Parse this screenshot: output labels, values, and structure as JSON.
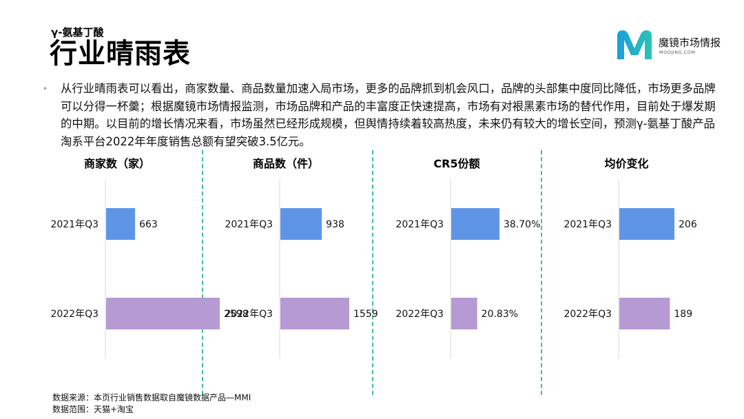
{
  "header": {
    "subtitle": "γ-氨基丁酸",
    "title": "行业晴雨表"
  },
  "logo": {
    "name_cn": "魔镜市场情报",
    "name_en": "MOOJING.COM",
    "colors": [
      "#1a9fd8",
      "#2bc3b6"
    ]
  },
  "summary": "从行业晴雨表可以看出，商家数量、商品数量加速入局市场，更多的品牌抓到机会风口，品牌的头部集中度同比降低，市场更多品牌可以分得一杯羹；根据魔镜市场情报监测，市场品牌和产品的丰富度正快速提高，市场有对裉黑素市场的替代作用，目前处于爆发期的中期。以目前的增长情况来看，市场虽然已经形成规模，但舆情持续着较高热度，未来仍有较大的增长空间，预测γ-氨基丁酸产品淘系平台2022年年度销售总额有望突破3.5亿元。",
  "colors": {
    "q3_2021": "#5f95e6",
    "q3_2022": "#b69ad3",
    "divider": "#3ebf9a"
  },
  "chart_data": [
    {
      "type": "bar",
      "orientation": "horizontal",
      "title": "商家数（家）",
      "categories": [
        "2021年Q3",
        "2022年Q3"
      ],
      "values": [
        663,
        2598
      ],
      "labels": [
        "663",
        "2598"
      ]
    },
    {
      "type": "bar",
      "orientation": "horizontal",
      "title": "商品数（件）",
      "categories": [
        "2021年Q3",
        "2022年Q3"
      ],
      "values": [
        938,
        1559
      ],
      "labels": [
        "938",
        "1559"
      ]
    },
    {
      "type": "bar",
      "orientation": "horizontal",
      "title": "CR5份额",
      "categories": [
        "2021年Q3",
        "2022年Q3"
      ],
      "values": [
        38.7,
        20.83
      ],
      "labels": [
        "38.70%",
        "20.83%"
      ]
    },
    {
      "type": "bar",
      "orientation": "horizontal",
      "title": "均价变化",
      "categories": [
        "2021年Q3",
        "2022年Q3"
      ],
      "values": [
        206,
        189
      ],
      "labels": [
        "206",
        "189"
      ]
    }
  ],
  "footer": {
    "source": "数据来源：本页行业销售数据取自魔镜数据产品—MMI",
    "scope": "数据范围：天猫+淘宝"
  }
}
